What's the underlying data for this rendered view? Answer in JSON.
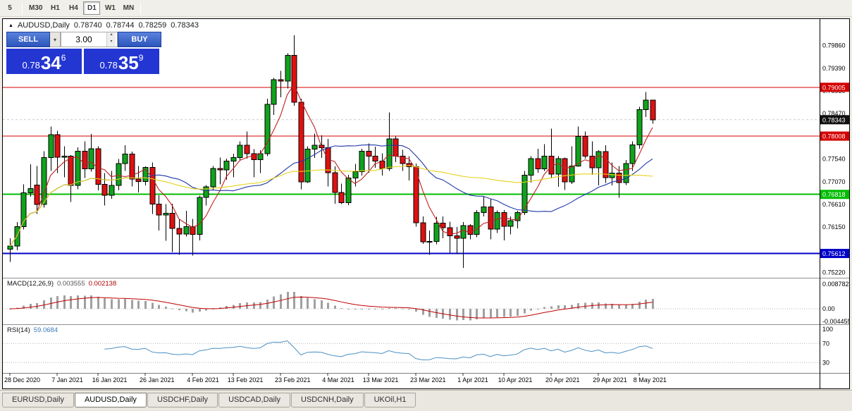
{
  "toolbar": {
    "timeframes": [
      "5",
      "M30",
      "H1",
      "H4",
      "D1",
      "W1",
      "MN"
    ],
    "active": "D1"
  },
  "chart_header": {
    "icon": "▲",
    "symbol_label": "AUDUSD,Daily",
    "open": "0.78740",
    "high": "0.78744",
    "low": "0.78259",
    "close": "0.78343"
  },
  "trade_panel": {
    "sell_label": "SELL",
    "buy_label": "BUY",
    "volume": "3.00",
    "sell_price": {
      "prefix": "0.78",
      "pips": "34",
      "point": "6"
    },
    "buy_price": {
      "prefix": "0.78",
      "pips": "35",
      "point": "9"
    }
  },
  "price_axis": {
    "labels": [
      {
        "text": "0.79860",
        "price": 0.7986
      },
      {
        "text": "0.79390",
        "price": 0.7939
      },
      {
        "text": "0.78930",
        "price": 0.7893
      },
      {
        "text": "0.78470",
        "price": 0.7847
      },
      {
        "text": "0.77540",
        "price": 0.7754
      },
      {
        "text": "0.77070",
        "price": 0.7707
      },
      {
        "text": "0.76610",
        "price": 0.7661
      },
      {
        "text": "0.76150",
        "price": 0.7615
      },
      {
        "text": "0.75220",
        "price": 0.7522
      }
    ],
    "badges": [
      {
        "text": "0.79005",
        "price": 0.79005,
        "bg": "#d40000",
        "fg": "#ffffff"
      },
      {
        "text": "0.78008",
        "price": 0.78008,
        "bg": "#d40000",
        "fg": "#ffffff"
      },
      {
        "text": "0.76818",
        "price": 0.76818,
        "bg": "#00bc00",
        "fg": "#ffffff"
      },
      {
        "text": "0.75612",
        "price": 0.75612,
        "bg": "#0000c8",
        "fg": "#ffffff"
      },
      {
        "text": "0.78343",
        "price": 0.78343,
        "bg": "#101010",
        "fg": "#ffffff"
      }
    ]
  },
  "hlines": [
    {
      "name": "resistance-line-upper",
      "price": 0.79005,
      "color": "#d40000",
      "width": 1
    },
    {
      "name": "resistance-line-lower",
      "price": 0.78008,
      "color": "#d40000",
      "width": 1
    },
    {
      "name": "support-line-green",
      "price": 0.76818,
      "color": "#00bc00",
      "width": 2
    },
    {
      "name": "support-line-blue",
      "price": 0.75612,
      "color": "#0000c8",
      "width": 2
    }
  ],
  "current_price": {
    "label": "0.78343",
    "price": 0.78343
  },
  "indicators": {
    "macd": {
      "label": "MACD(12,26,9)",
      "value_main": "0.003555",
      "value_signal": "0.002138",
      "axis": [
        {
          "text": "0.008782",
          "value": 0.008782
        },
        {
          "text": "0.00",
          "value": 0
        },
        {
          "text": "-0.004455",
          "value": -0.004455
        }
      ]
    },
    "rsi": {
      "label": "RSI(14)",
      "value": "59.0684",
      "axis": [
        {
          "text": "100",
          "value": 100
        },
        {
          "text": "70",
          "value": 70
        },
        {
          "text": "30",
          "value": 30
        }
      ],
      "levels": [
        70,
        30
      ]
    }
  },
  "time_axis": {
    "labels": [
      {
        "text": "28 Dec 2020",
        "index": 0
      },
      {
        "text": "7 Jan 2021",
        "index": 7
      },
      {
        "text": "16 Jan 2021",
        "index": 13
      },
      {
        "text": "26 Jan 2021",
        "index": 20
      },
      {
        "text": "4 Feb 2021",
        "index": 27
      },
      {
        "text": "13 Feb 2021",
        "index": 33
      },
      {
        "text": "23 Feb 2021",
        "index": 40
      },
      {
        "text": "4 Mar 2021",
        "index": 47
      },
      {
        "text": "13 Mar 2021",
        "index": 53
      },
      {
        "text": "23 Mar 2021",
        "index": 60
      },
      {
        "text": "1 Apr 2021",
        "index": 67
      },
      {
        "text": "10 Apr 2021",
        "index": 73
      },
      {
        "text": "20 Apr 2021",
        "index": 80
      },
      {
        "text": "29 Apr 2021",
        "index": 87
      },
      {
        "text": "8 May 2021",
        "index": 93
      }
    ]
  },
  "tabs": [
    {
      "label": "EURUSD,Daily",
      "active": false
    },
    {
      "label": "AUDUSD,Daily",
      "active": true
    },
    {
      "label": "USDCHF,Daily",
      "active": false
    },
    {
      "label": "USDCAD,Daily",
      "active": false
    },
    {
      "label": "USDCNH,Daily",
      "active": false
    },
    {
      "label": "UKOil,H1",
      "active": false
    }
  ],
  "colors": {
    "bull_candle": "#10a31c",
    "bear_candle": "#e01010",
    "wick": "#000000",
    "ma_fast": "#c02020",
    "ma_mid": "#2038a8",
    "ma_slow": "#e6d219",
    "macd_histogram": "#a0a0a0",
    "macd_signal": "#c00000",
    "rsi_line": "#4a90c4",
    "accent_blue": "#2336d2"
  },
  "chart_data": {
    "type": "candlestick",
    "title": "AUDUSD,Daily",
    "symbol": "AUDUSD",
    "timeframe": "Daily",
    "ylim": [
      0.7513,
      0.8037
    ],
    "moving_averages": [
      {
        "period": 5,
        "color": "#c02020"
      },
      {
        "period": 21,
        "color": "#2038a8"
      },
      {
        "period": 55,
        "color": "#e6d219"
      }
    ],
    "sub_indicators": {
      "macd": {
        "fast": 12,
        "slow": 26,
        "signal": 9
      },
      "rsi": {
        "period": 14
      }
    },
    "candles": [
      [
        0.757,
        0.7592,
        0.7544,
        0.7576
      ],
      [
        0.7576,
        0.7625,
        0.7568,
        0.7616
      ],
      [
        0.7616,
        0.7702,
        0.761,
        0.7685
      ],
      [
        0.7685,
        0.7743,
        0.7677,
        0.7694
      ],
      [
        0.7701,
        0.774,
        0.7642,
        0.7661
      ],
      [
        0.7661,
        0.777,
        0.7655,
        0.7757
      ],
      [
        0.7757,
        0.782,
        0.773,
        0.7804
      ],
      [
        0.7804,
        0.7812,
        0.7725,
        0.7758
      ],
      [
        0.7758,
        0.778,
        0.7717,
        0.776
      ],
      [
        0.776,
        0.7762,
        0.7666,
        0.77
      ],
      [
        0.77,
        0.7778,
        0.7692,
        0.777
      ],
      [
        0.777,
        0.779,
        0.7715,
        0.7734
      ],
      [
        0.7734,
        0.7805,
        0.7728,
        0.7775
      ],
      [
        0.7775,
        0.778,
        0.769,
        0.7702
      ],
      [
        0.7702,
        0.7725,
        0.7659,
        0.768
      ],
      [
        0.768,
        0.773,
        0.7673,
        0.77
      ],
      [
        0.77,
        0.7754,
        0.769,
        0.7745
      ],
      [
        0.7745,
        0.7782,
        0.773,
        0.7764
      ],
      [
        0.7764,
        0.7769,
        0.7698,
        0.7713
      ],
      [
        0.7713,
        0.774,
        0.7686,
        0.7708
      ],
      [
        0.7708,
        0.7739,
        0.77,
        0.7737
      ],
      [
        0.7737,
        0.7747,
        0.7642,
        0.7662
      ],
      [
        0.7662,
        0.768,
        0.7608,
        0.764
      ],
      [
        0.764,
        0.7662,
        0.7587,
        0.7643
      ],
      [
        0.7643,
        0.7663,
        0.7564,
        0.7612
      ],
      [
        0.7612,
        0.763,
        0.7558,
        0.7601
      ],
      [
        0.7601,
        0.7648,
        0.7596,
        0.7616
      ],
      [
        0.7616,
        0.7632,
        0.7557,
        0.76
      ],
      [
        0.76,
        0.7679,
        0.7588,
        0.7676
      ],
      [
        0.7676,
        0.7701,
        0.7659,
        0.7697
      ],
      [
        0.7697,
        0.774,
        0.769,
        0.7735
      ],
      [
        0.7735,
        0.7757,
        0.7702,
        0.7732
      ],
      [
        0.7732,
        0.7755,
        0.7712,
        0.775
      ],
      [
        0.775,
        0.7765,
        0.7717,
        0.7757
      ],
      [
        0.7757,
        0.779,
        0.7752,
        0.7782
      ],
      [
        0.7782,
        0.781,
        0.7755,
        0.7765
      ],
      [
        0.7765,
        0.7774,
        0.7717,
        0.7753
      ],
      [
        0.7753,
        0.7772,
        0.7725,
        0.7765
      ],
      [
        0.7765,
        0.7877,
        0.776,
        0.7866
      ],
      [
        0.7866,
        0.792,
        0.7844,
        0.7916
      ],
      [
        0.7916,
        0.7934,
        0.788,
        0.7913
      ],
      [
        0.7913,
        0.797,
        0.7898,
        0.7966
      ],
      [
        0.7966,
        0.8007,
        0.7863,
        0.787
      ],
      [
        0.787,
        0.7877,
        0.7692,
        0.7707
      ],
      [
        0.7707,
        0.778,
        0.7705,
        0.7774
      ],
      [
        0.7774,
        0.7806,
        0.7756,
        0.7782
      ],
      [
        0.7782,
        0.7802,
        0.7756,
        0.7777
      ],
      [
        0.7777,
        0.7795,
        0.7698,
        0.7726
      ],
      [
        0.7726,
        0.7739,
        0.7663,
        0.7686
      ],
      [
        0.7686,
        0.7704,
        0.7662,
        0.7665
      ],
      [
        0.7665,
        0.7722,
        0.766,
        0.7715
      ],
      [
        0.7715,
        0.7744,
        0.7698,
        0.7728
      ],
      [
        0.7728,
        0.7775,
        0.772,
        0.777
      ],
      [
        0.777,
        0.7786,
        0.7726,
        0.776
      ],
      [
        0.776,
        0.7779,
        0.7736,
        0.775
      ],
      [
        0.775,
        0.7766,
        0.772,
        0.7735
      ],
      [
        0.7735,
        0.7849,
        0.773,
        0.7795
      ],
      [
        0.7795,
        0.78,
        0.7748,
        0.776
      ],
      [
        0.776,
        0.7773,
        0.773,
        0.7745
      ],
      [
        0.7745,
        0.776,
        0.771,
        0.7738
      ],
      [
        0.7738,
        0.7745,
        0.7616,
        0.7624
      ],
      [
        0.7624,
        0.7637,
        0.7581,
        0.7585
      ],
      [
        0.7585,
        0.7608,
        0.7558,
        0.7586
      ],
      [
        0.7586,
        0.7636,
        0.758,
        0.7623
      ],
      [
        0.7623,
        0.7637,
        0.7592,
        0.7614
      ],
      [
        0.7614,
        0.7626,
        0.7563,
        0.7597
      ],
      [
        0.7597,
        0.7615,
        0.756,
        0.7592
      ],
      [
        0.7592,
        0.7625,
        0.7532,
        0.7618
      ],
      [
        0.7618,
        0.7621,
        0.759,
        0.76
      ],
      [
        0.76,
        0.765,
        0.7594,
        0.7645
      ],
      [
        0.7645,
        0.7677,
        0.7637,
        0.7656
      ],
      [
        0.7656,
        0.7673,
        0.759,
        0.7611
      ],
      [
        0.7611,
        0.7649,
        0.7603,
        0.7645
      ],
      [
        0.7645,
        0.765,
        0.7588,
        0.7617
      ],
      [
        0.7617,
        0.7637,
        0.76,
        0.7628
      ],
      [
        0.7628,
        0.7648,
        0.7612,
        0.7645
      ],
      [
        0.7645,
        0.773,
        0.764,
        0.7721
      ],
      [
        0.7721,
        0.776,
        0.7706,
        0.7755
      ],
      [
        0.7755,
        0.7775,
        0.7726,
        0.7734
      ],
      [
        0.7734,
        0.7784,
        0.773,
        0.776
      ],
      [
        0.776,
        0.7816,
        0.7715,
        0.7723
      ],
      [
        0.7723,
        0.776,
        0.7697,
        0.7755
      ],
      [
        0.7755,
        0.7757,
        0.7691,
        0.7707
      ],
      [
        0.7707,
        0.778,
        0.7703,
        0.774
      ],
      [
        0.774,
        0.782,
        0.7738,
        0.78
      ],
      [
        0.78,
        0.781,
        0.7755,
        0.776
      ],
      [
        0.776,
        0.779,
        0.7722,
        0.7736
      ],
      [
        0.7736,
        0.7772,
        0.77,
        0.7769
      ],
      [
        0.7769,
        0.7782,
        0.7705,
        0.7716
      ],
      [
        0.7716,
        0.7747,
        0.77,
        0.7725
      ],
      [
        0.7725,
        0.774,
        0.7675,
        0.7706
      ],
      [
        0.7706,
        0.7752,
        0.7701,
        0.7745
      ],
      [
        0.7745,
        0.779,
        0.773,
        0.7783
      ],
      [
        0.7783,
        0.7861,
        0.7775,
        0.7855
      ],
      [
        0.7855,
        0.7891,
        0.784,
        0.7874
      ],
      [
        0.7874,
        0.78744,
        0.78259,
        0.78343
      ]
    ]
  }
}
